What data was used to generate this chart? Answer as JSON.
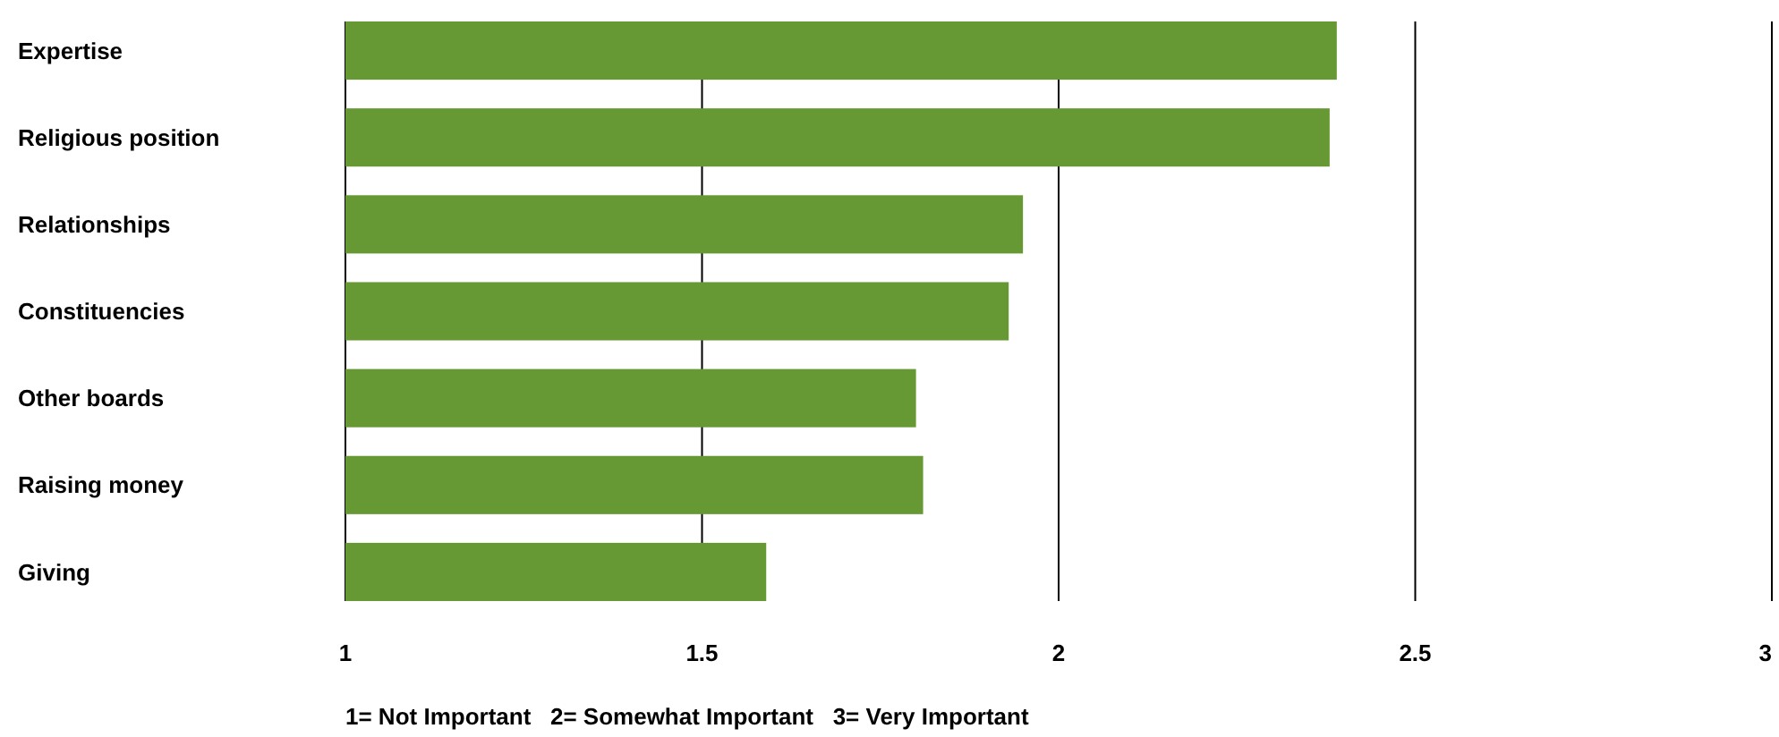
{
  "chart_data": {
    "type": "bar",
    "orientation": "horizontal",
    "categories": [
      "Expertise",
      "Religious position",
      "Relationships",
      "Constituencies",
      "Other boards",
      "Raising money",
      "Giving"
    ],
    "values": [
      2.39,
      2.38,
      1.95,
      1.93,
      1.8,
      1.81,
      1.59
    ],
    "color": "#669933",
    "xlim": [
      1,
      3
    ],
    "xticks": [
      1,
      1.5,
      2,
      2.5,
      3
    ],
    "grid": "x",
    "annotations": [
      "1= Not Important   2= Somewhat Important   3= Very Important"
    ]
  }
}
